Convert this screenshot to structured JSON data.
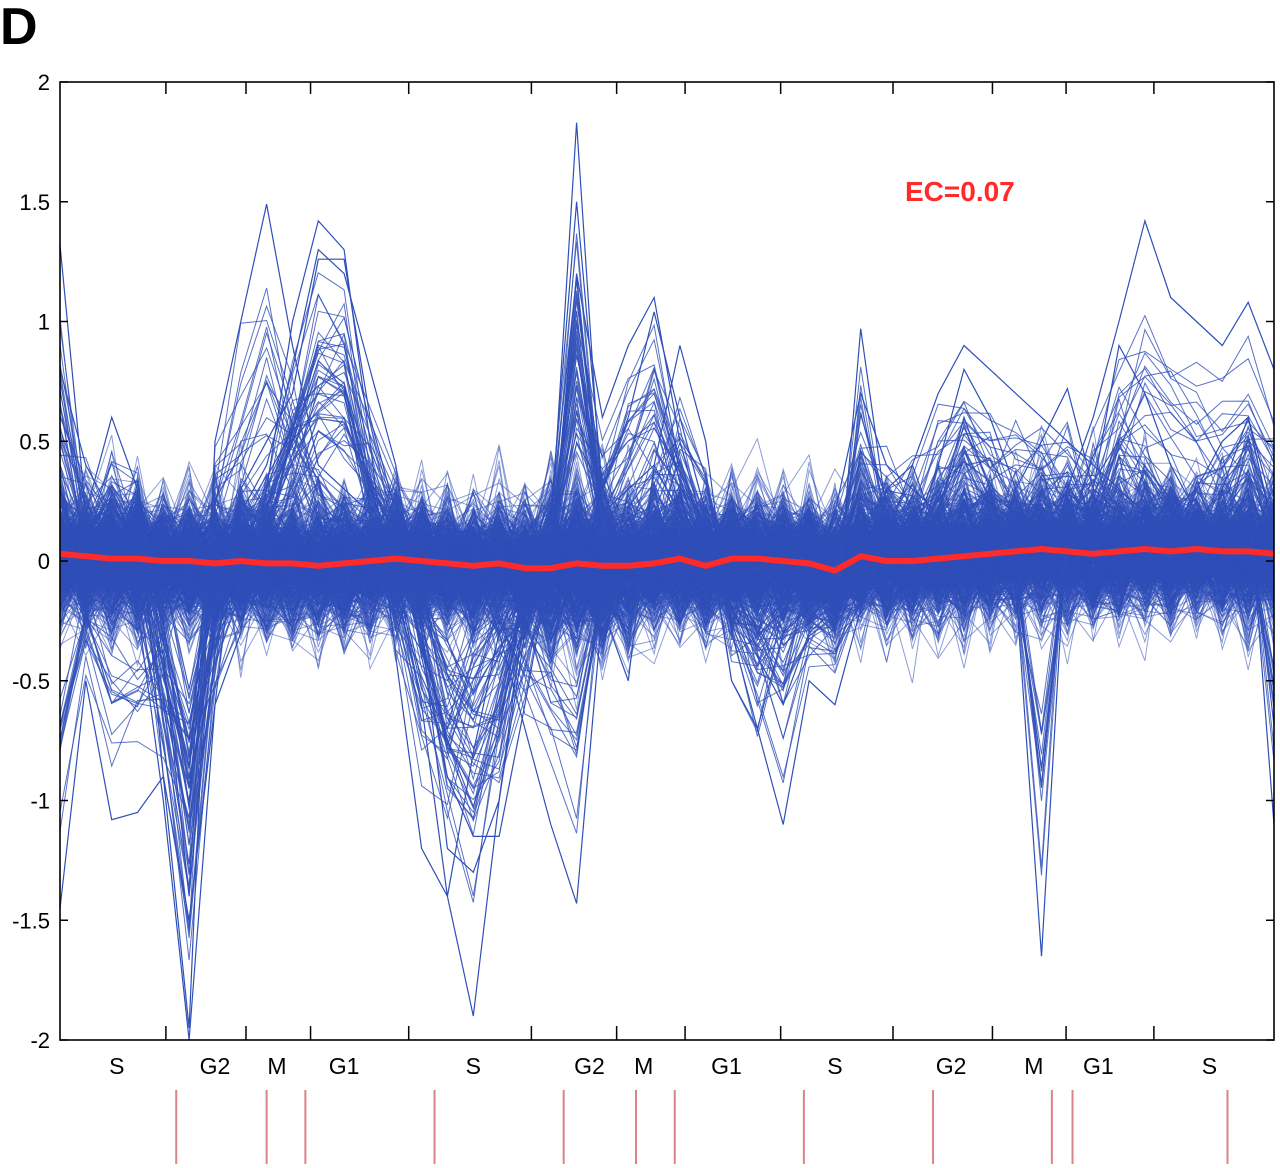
{
  "panel_label": "D",
  "colors": {
    "profiles": "#2f4fb8",
    "mean_line": "#ff2a2a",
    "axis": "#000000",
    "marker": "#d9848a"
  },
  "chart_data": {
    "type": "line",
    "annotation": "EC=0.07",
    "ylim": [
      -2,
      2
    ],
    "y_ticks": [
      2,
      1.5,
      1,
      0.5,
      0,
      -0.5,
      -1,
      -1.5,
      -2
    ],
    "y_tick_labels": [
      "2",
      "1.5",
      "1",
      "0.5",
      "0",
      "-0.5",
      "-1",
      "-1.5",
      "-2"
    ],
    "num_points": 48,
    "x_phase_labels": [
      "S",
      "G2",
      "M",
      "G1",
      "S",
      "G2",
      "M",
      "G1",
      "S",
      "G2",
      "M",
      "G1",
      "S"
    ],
    "x_phase_positions": [
      2.2,
      6.0,
      8.4,
      11.0,
      16.0,
      20.5,
      22.6,
      25.8,
      30.0,
      34.5,
      37.7,
      40.2,
      44.5
    ],
    "mean_profile": [
      0.03,
      0.02,
      0.01,
      0.01,
      0.0,
      0.0,
      -0.01,
      0.0,
      -0.01,
      -0.01,
      -0.02,
      -0.01,
      0.0,
      0.01,
      0.0,
      -0.01,
      -0.02,
      -0.01,
      -0.03,
      -0.03,
      -0.01,
      -0.02,
      -0.02,
      -0.01,
      0.01,
      -0.02,
      0.01,
      0.01,
      0.0,
      -0.01,
      -0.04,
      0.02,
      0.0,
      0.0,
      0.01,
      0.02,
      0.03,
      0.04,
      0.05,
      0.04,
      0.03,
      0.04,
      0.05,
      0.04,
      0.05,
      0.04,
      0.04,
      0.03
    ],
    "series": [
      {
        "values": [
          1.32,
          0.2,
          0.6,
          0.3,
          -0.9,
          -1.95,
          0.5,
          1.0,
          1.49,
          0.9,
          0.4,
          0.3,
          0.2,
          -0.1,
          -0.6,
          -1.4,
          -1.9,
          -1.0,
          -0.3,
          0.1,
          1.83,
          0.2,
          0.3,
          0.4,
          0.2,
          0.0,
          0.1,
          -0.2,
          0.1,
          -0.1,
          0.2,
          0.7,
          0.4,
          0.3,
          0.2,
          0.6,
          0.3,
          0.2,
          0.1,
          0.3,
          0.6,
          1.0,
          1.42,
          1.1,
          1.0,
          0.9,
          1.08,
          0.8
        ]
      },
      {
        "values": [
          -1.45,
          -0.5,
          -1.08,
          -1.05,
          -0.9,
          -1.5,
          -0.6,
          -0.3,
          0.3,
          1.0,
          1.42,
          1.3,
          0.5,
          -0.4,
          -1.2,
          -1.4,
          -0.8,
          -0.3,
          -0.7,
          -1.1,
          -1.43,
          -0.2,
          -0.5,
          0.4,
          0.9,
          0.5,
          -0.3,
          -0.7,
          -1.1,
          -0.5,
          -0.6,
          -0.2,
          0.1,
          0.4,
          0.1,
          0.2,
          0.3,
          -0.1,
          -1.65,
          0.2,
          0.3,
          0.9,
          0.7,
          0.4,
          0.2,
          0.1,
          0.3,
          -1.1
        ]
      },
      {
        "values": [
          0.8,
          0.4,
          0.2,
          -0.2,
          -1.0,
          -2.0,
          -0.6,
          0.3,
          0.5,
          0.7,
          1.26,
          1.26,
          0.6,
          0.2,
          -0.4,
          -0.9,
          -1.15,
          -1.15,
          -0.6,
          0.0,
          1.2,
          0.6,
          0.9,
          1.1,
          0.5,
          0.1,
          -0.2,
          -0.4,
          -0.6,
          -0.3,
          -0.2,
          0.0,
          0.3,
          0.4,
          0.7,
          0.9,
          0.8,
          0.7,
          0.6,
          0.5,
          0.4,
          0.3,
          0.2,
          0.0,
          -0.1,
          0.3,
          0.6,
          0.2
        ]
      },
      {
        "values": [
          0.3,
          -0.2,
          0.1,
          0.3,
          -0.4,
          -1.4,
          -0.2,
          0.2,
          0.4,
          0.8,
          1.3,
          1.2,
          0.8,
          0.4,
          -0.3,
          -1.2,
          -1.3,
          -1.0,
          -0.2,
          0.2,
          1.5,
          0.3,
          0.6,
          1.04,
          0.6,
          0.2,
          -0.5,
          -0.7,
          -0.3,
          -0.2,
          -0.3,
          0.97,
          0.2,
          0.1,
          0.4,
          0.8,
          0.6,
          0.3,
          0.5,
          0.72,
          0.3,
          0.2,
          0.1,
          0.2,
          0.3,
          0.5,
          0.6,
          0.1
        ]
      }
    ],
    "phase_marker_positions": [
      4.5,
      8.0,
      9.5,
      14.5,
      19.5,
      22.3,
      23.8,
      28.8,
      33.8,
      38.4,
      39.2,
      45.2
    ]
  }
}
